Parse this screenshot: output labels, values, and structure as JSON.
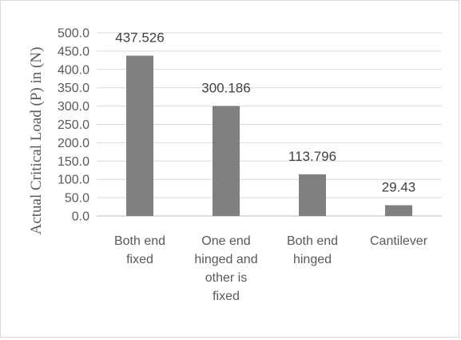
{
  "chart_data": {
    "type": "bar",
    "title": "",
    "xlabel": "",
    "ylabel": "Actual Critical Load (P) in (N)",
    "ylim": [
      0,
      500
    ],
    "y_ticks": [
      "0.0",
      "50.0",
      "100.0",
      "150.0",
      "200.0",
      "250.0",
      "300.0",
      "350.0",
      "400.0",
      "450.0",
      "500.0"
    ],
    "categories": [
      [
        "Both end",
        "fixed"
      ],
      [
        "One end",
        "hinged and",
        "other is",
        "fixed"
      ],
      [
        "Both end",
        "hinged"
      ],
      [
        "Cantilever"
      ]
    ],
    "values": [
      437.526,
      300.186,
      113.796,
      29.43
    ],
    "data_labels": [
      "437.526",
      "300.186",
      "113.796",
      "29.43"
    ],
    "bar_color": "#808080",
    "grid": true,
    "legend": "none"
  }
}
